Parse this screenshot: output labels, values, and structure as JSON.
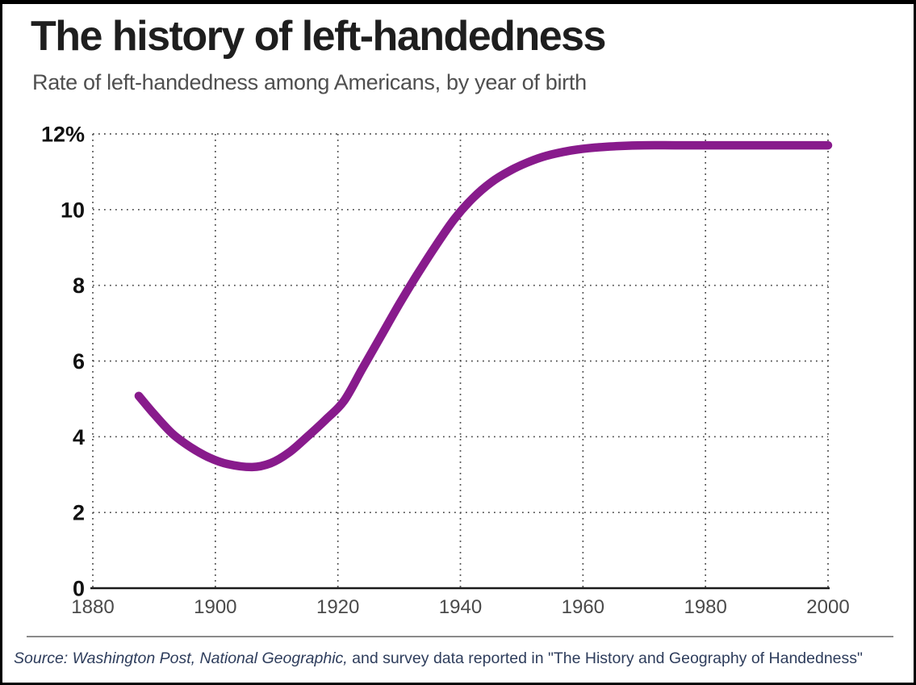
{
  "header": {
    "title": "The history of left-handedness",
    "subtitle": "Rate of left-handedness among Americans, by year of birth"
  },
  "footer": {
    "source_italic": "Source: Washington Post, National Geographic,",
    "source_regular": " and survey data reported in \"The History and Geography of Handedness\""
  },
  "colors": {
    "line": "#881B8C",
    "grid_dots": "#474747",
    "axis": "#1a1a1a",
    "title": "#1e1e1e",
    "subtitle": "#4f4f4f",
    "x_tick_text": "#4a4a4a",
    "y_tick_text": "#111111",
    "source_text": "#2e3d5c",
    "divider": "#8a8a8a",
    "page_border": "#000000",
    "background": "#ffffff"
  },
  "chart_data": {
    "type": "line",
    "title": "The history of left-handedness",
    "subtitle": "Rate of left-handedness among Americans, by year of birth",
    "xlabel": "",
    "ylabel": "",
    "xlim": [
      1880,
      2000
    ],
    "ylim": [
      0,
      12
    ],
    "grid": "dotted",
    "legend": "none",
    "x_ticks": [
      1880,
      1900,
      1920,
      1940,
      1960,
      1980,
      2000
    ],
    "y_ticks": [
      {
        "value": 12,
        "label": "12%"
      },
      {
        "value": 10,
        "label": "10"
      },
      {
        "value": 8,
        "label": "8"
      },
      {
        "value": 6,
        "label": "6"
      },
      {
        "value": 4,
        "label": "4"
      },
      {
        "value": 2,
        "label": "2"
      },
      {
        "value": 0,
        "label": "0"
      }
    ],
    "series": [
      {
        "name": "Rate of left-handedness among Americans (%)",
        "color": "#881B8C",
        "points": [
          [
            1887.5,
            5.08
          ],
          [
            1890,
            4.6
          ],
          [
            1893,
            4.08
          ],
          [
            1896,
            3.72
          ],
          [
            1899,
            3.45
          ],
          [
            1902,
            3.28
          ],
          [
            1906,
            3.2
          ],
          [
            1909,
            3.3
          ],
          [
            1912,
            3.58
          ],
          [
            1915,
            4.0
          ],
          [
            1918,
            4.45
          ],
          [
            1921,
            4.95
          ],
          [
            1924,
            5.8
          ],
          [
            1927,
            6.65
          ],
          [
            1930,
            7.5
          ],
          [
            1933,
            8.3
          ],
          [
            1936,
            9.05
          ],
          [
            1939,
            9.75
          ],
          [
            1942,
            10.3
          ],
          [
            1945,
            10.72
          ],
          [
            1948,
            11.02
          ],
          [
            1951,
            11.25
          ],
          [
            1954,
            11.42
          ],
          [
            1958,
            11.56
          ],
          [
            1962,
            11.64
          ],
          [
            1966,
            11.68
          ],
          [
            1970,
            11.7
          ],
          [
            1975,
            11.7
          ],
          [
            1980,
            11.7
          ],
          [
            1985,
            11.7
          ],
          [
            1990,
            11.7
          ],
          [
            1995,
            11.7
          ],
          [
            2000,
            11.7
          ]
        ]
      }
    ]
  }
}
